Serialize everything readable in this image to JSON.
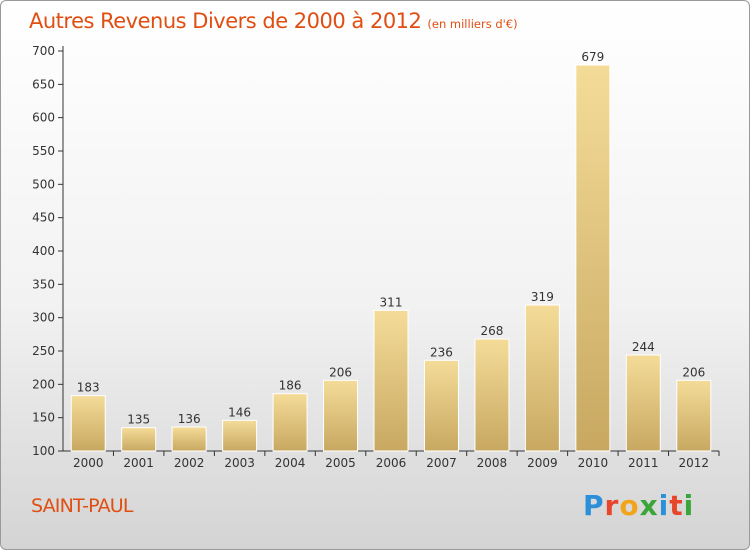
{
  "header": {
    "title": "Autres Revenus Divers de 2000 à 2012",
    "subtitle": "(en milliers d'€)"
  },
  "footer": {
    "place": "SAINT-PAUL",
    "logo_letters": [
      {
        "ch": "P",
        "color": "#2b8fd9"
      },
      {
        "ch": "r",
        "color": "#e8462a"
      },
      {
        "ch": "o",
        "color": "#f2a51a"
      },
      {
        "ch": "x",
        "color": "#3aa63a"
      },
      {
        "ch": "i",
        "color": "#2b8fd9"
      },
      {
        "ch": "t",
        "color": "#e8462a"
      },
      {
        "ch": "i",
        "color": "#3aa63a"
      }
    ]
  },
  "chart_data": {
    "type": "bar",
    "title": "Autres Revenus Divers de 2000 à 2012",
    "subtitle": "(en milliers d'€)",
    "xlabel": "",
    "ylabel": "",
    "categories": [
      "2000",
      "2001",
      "2002",
      "2003",
      "2004",
      "2005",
      "2006",
      "2007",
      "2008",
      "2009",
      "2010",
      "2011",
      "2012"
    ],
    "values": [
      183,
      135,
      136,
      146,
      186,
      206,
      311,
      236,
      268,
      319,
      679,
      244,
      206
    ],
    "ylim": [
      100,
      700
    ],
    "yticks": [
      100,
      150,
      200,
      250,
      300,
      350,
      400,
      450,
      500,
      550,
      600,
      650,
      700
    ],
    "grid": false,
    "bar_color_light": "#f4dc98",
    "bar_color_dark": "#c8a861",
    "axis_color": "#333333"
  }
}
